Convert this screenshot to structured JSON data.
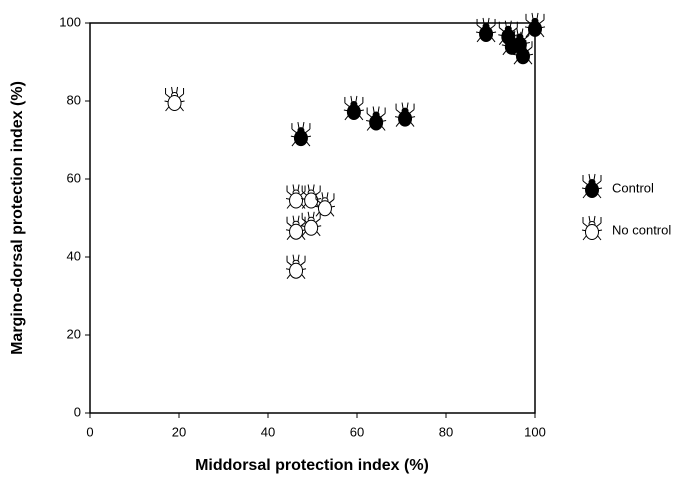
{
  "chart_data": {
    "type": "scatter",
    "x_label": "Middorsal protection index (%)",
    "y_label": "Margino-dorsal protection index (%)",
    "xlim": [
      0,
      100
    ],
    "ylim": [
      0,
      100
    ],
    "xticks": [
      0,
      20,
      40,
      60,
      80,
      100
    ],
    "yticks": [
      0,
      20,
      40,
      60,
      80,
      100
    ],
    "series": [
      {
        "name": "Control",
        "color": "#000000",
        "x": [
          47.4,
          59.3,
          64.3,
          70.8,
          89,
          94,
          94.8,
          96.6,
          97.3,
          100
        ],
        "values": [
          71,
          77.7,
          75,
          76,
          97.7,
          97,
          94.4,
          95,
          92,
          99
        ]
      },
      {
        "name": "No control",
        "color": "#ffffff",
        "x": [
          19,
          46.3,
          49.7,
          52.8,
          46.3,
          49.7,
          46.3
        ],
        "values": [
          80,
          55,
          55,
          53,
          47,
          48,
          37
        ]
      }
    ]
  }
}
